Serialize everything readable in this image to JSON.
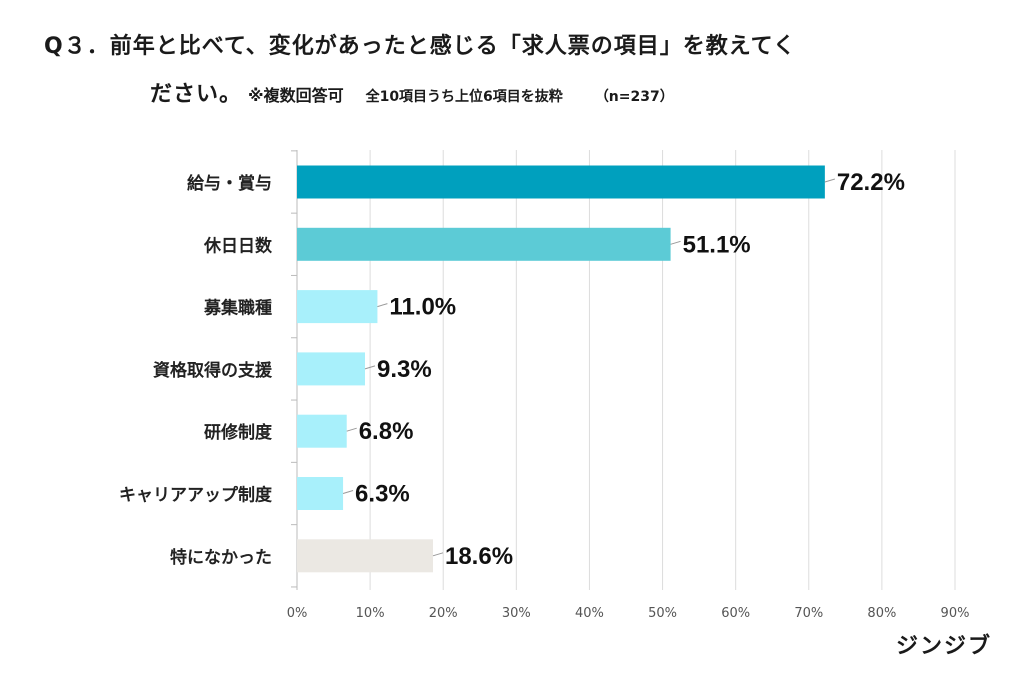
{
  "title": {
    "line1": "Q３．前年と比べて、変化があったと感じる「求人票の項目」を教えてく",
    "line2_main": "ださい。",
    "line2_note": "※複数回答可",
    "line2_scope": "全10項目うち上位6項目を抜粋",
    "line2_n": "（n=237）"
  },
  "brand": "ジンジブ",
  "colors": {
    "bar_top": "#00a0be",
    "bar_second": "#5ccbd6",
    "bar_other": "#a8f0fb",
    "bar_none": "#ebe8e3",
    "grid": "#dcdcdc"
  },
  "chart_data": {
    "type": "bar",
    "orientation": "horizontal",
    "categories": [
      "給与・賞与",
      "休日日数",
      "募集職種",
      "資格取得の支援",
      "研修制度",
      "キャリアアップ制度",
      "特になかった"
    ],
    "values": [
      72.2,
      51.1,
      11.0,
      9.3,
      6.8,
      6.3,
      18.6
    ],
    "value_labels": [
      "72.2%",
      "51.1%",
      "11.0%",
      "9.3%",
      "6.8%",
      "6.3%",
      "18.6%"
    ],
    "xlim": [
      0,
      90
    ],
    "x_ticks": [
      "0%",
      "10%",
      "20%",
      "30%",
      "40%",
      "50%",
      "60%",
      "70%",
      "80%",
      "90%"
    ],
    "grid": true
  }
}
